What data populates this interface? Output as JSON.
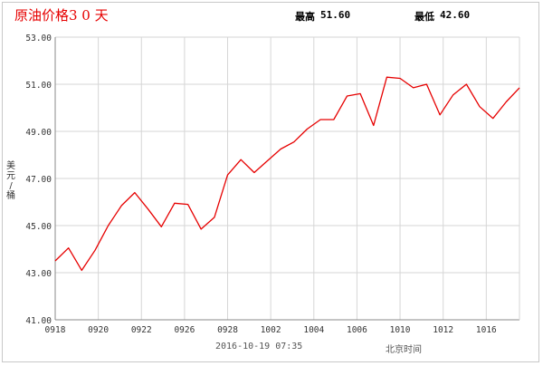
{
  "header": {
    "title": "原油价格3 0 天",
    "max_label": "最高",
    "max_value": "51.60",
    "min_label": "最低",
    "min_value": "42.60"
  },
  "footer": {
    "timestamp": "2016-10-19 07:35",
    "timezone_label": "北京时间"
  },
  "colors": {
    "series": "#e60000",
    "grid": "#d6d6d6",
    "axis": "#888888",
    "title": "#e60000"
  },
  "chart_data": {
    "type": "line",
    "ylabel": "美元/桶",
    "ylim": [
      41.0,
      53.0
    ],
    "yticks": [
      "41.00",
      "43.00",
      "45.00",
      "47.00",
      "49.00",
      "51.00",
      "53.00"
    ],
    "xticks": [
      "0918",
      "0920",
      "0922",
      "0926",
      "0928",
      "1002",
      "1004",
      "1006",
      "1010",
      "1012",
      "1016"
    ],
    "grid": true,
    "series": [
      {
        "values": [
          43.5,
          44.05,
          43.1,
          43.95,
          45.0,
          45.85,
          46.4,
          45.7,
          44.95,
          45.95,
          45.9,
          44.85,
          45.35,
          47.15,
          47.8,
          47.25,
          47.75,
          48.25,
          48.55,
          49.1,
          49.5,
          49.5,
          50.5,
          50.6,
          49.25,
          51.3,
          51.25,
          50.85,
          51.0,
          49.7,
          50.55,
          51.0,
          50.05,
          49.55,
          50.25,
          50.85
        ]
      }
    ]
  }
}
